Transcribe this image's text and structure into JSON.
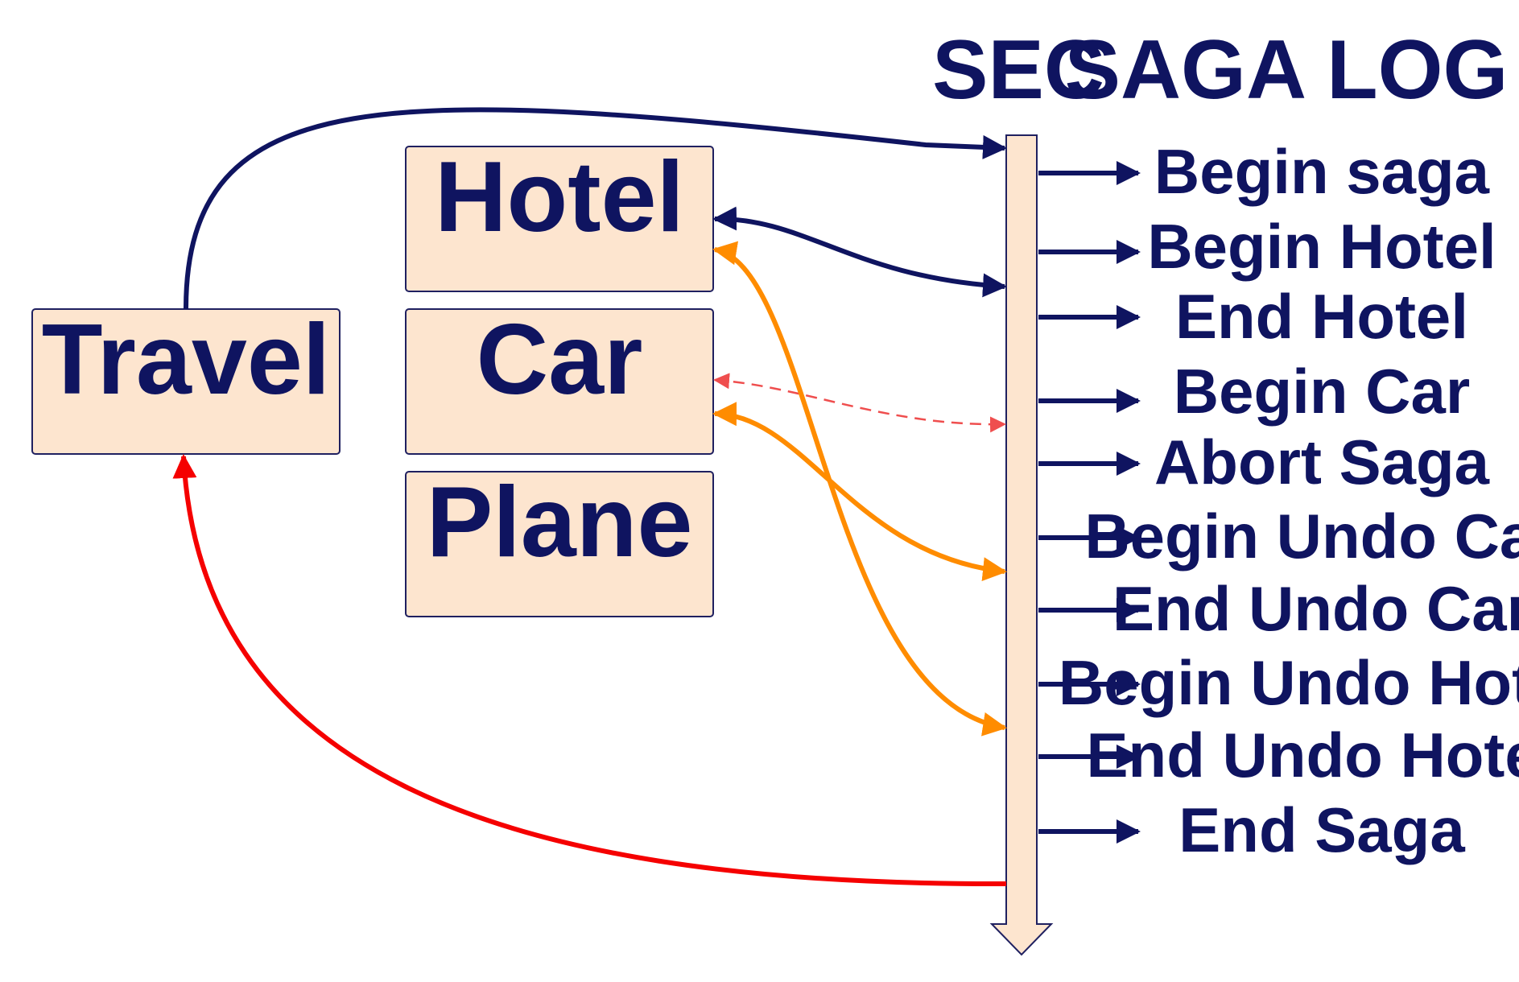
{
  "headers": {
    "sec": "SEC",
    "saga_log": "SAGA LOG"
  },
  "services": {
    "travel": "Travel",
    "hotel": "Hotel",
    "car": "Car",
    "plane": "Plane"
  },
  "log_entries": [
    "Begin saga",
    "Begin Hotel",
    "End Hotel",
    "Begin Car",
    "Abort Saga",
    "Begin Undo Car",
    "End Undo Car",
    "Begin Undo Hotel",
    "End Undo Hotel",
    "End Saga"
  ],
  "colors": {
    "navy": "#0f1460",
    "orange": "#ff8c00",
    "red": "#f50000",
    "dashed_red": "#ef4e4e",
    "box_fill": "#fde5cf"
  }
}
